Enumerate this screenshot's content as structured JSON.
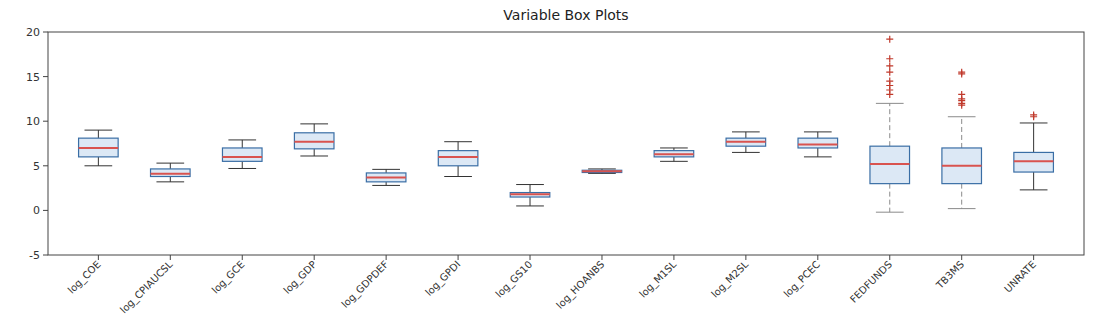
{
  "chart_data": {
    "type": "box",
    "title": "Variable Box Plots",
    "categories": [
      "log_COE",
      "log_CPIAUCSL",
      "log_GCE",
      "log_GDP",
      "log_GDPDEF",
      "log_GPDI",
      "log_GS10",
      "log_HOANBS",
      "log_M1SL",
      "log_M2SL",
      "log_PCEC",
      "FEDFUNDS",
      "TB3MS",
      "UNRATE"
    ],
    "boxes": [
      {
        "q1": 6.0,
        "median": 7.0,
        "q3": 8.1,
        "whislo": 5.0,
        "whishi": 9.0,
        "fliers": [],
        "line_style": "solid"
      },
      {
        "q1": 3.8,
        "median": 4.1,
        "q3": 4.65,
        "whislo": 3.2,
        "whishi": 5.3,
        "fliers": [],
        "line_style": "solid"
      },
      {
        "q1": 5.5,
        "median": 6.0,
        "q3": 7.0,
        "whislo": 4.7,
        "whishi": 7.9,
        "fliers": [],
        "line_style": "solid"
      },
      {
        "q1": 6.9,
        "median": 7.7,
        "q3": 8.7,
        "whislo": 6.1,
        "whishi": 9.7,
        "fliers": [],
        "line_style": "solid"
      },
      {
        "q1": 3.2,
        "median": 3.7,
        "q3": 4.2,
        "whislo": 2.8,
        "whishi": 4.6,
        "fliers": [],
        "line_style": "solid"
      },
      {
        "q1": 5.0,
        "median": 6.0,
        "q3": 6.7,
        "whislo": 3.8,
        "whishi": 7.7,
        "fliers": [],
        "line_style": "solid"
      },
      {
        "q1": 1.5,
        "median": 1.8,
        "q3": 2.0,
        "whislo": 0.5,
        "whishi": 2.9,
        "fliers": [],
        "line_style": "solid"
      },
      {
        "q1": 4.25,
        "median": 4.4,
        "q3": 4.5,
        "whislo": 4.15,
        "whishi": 4.65,
        "fliers": [],
        "line_style": "solid"
      },
      {
        "q1": 6.0,
        "median": 6.3,
        "q3": 6.7,
        "whislo": 5.5,
        "whishi": 7.0,
        "fliers": [],
        "line_style": "solid"
      },
      {
        "q1": 7.2,
        "median": 7.7,
        "q3": 8.1,
        "whislo": 6.5,
        "whishi": 8.8,
        "fliers": [],
        "line_style": "solid"
      },
      {
        "q1": 7.0,
        "median": 7.4,
        "q3": 8.1,
        "whislo": 6.0,
        "whishi": 8.8,
        "fliers": [],
        "line_style": "solid"
      },
      {
        "q1": 3.0,
        "median": 5.2,
        "q3": 7.2,
        "whislo": -0.2,
        "whishi": 12.0,
        "fliers": [
          13.0,
          13.5,
          14.0,
          14.5,
          15.5,
          16.2,
          17.0,
          19.2
        ],
        "line_style": "dashed"
      },
      {
        "q1": 3.0,
        "median": 5.0,
        "q3": 7.0,
        "whislo": 0.2,
        "whishi": 10.5,
        "fliers": [
          11.8,
          12.0,
          12.3,
          12.5,
          13.0,
          15.3,
          15.5
        ],
        "line_style": "dashed"
      },
      {
        "q1": 4.3,
        "median": 5.5,
        "q3": 6.5,
        "whislo": 2.3,
        "whishi": 9.8,
        "fliers": [
          10.5,
          10.7
        ],
        "line_style": "solid"
      }
    ],
    "ylim": [
      -5,
      20
    ],
    "yticks": [
      -5,
      0,
      5,
      10,
      15,
      20
    ],
    "grid": false
  }
}
